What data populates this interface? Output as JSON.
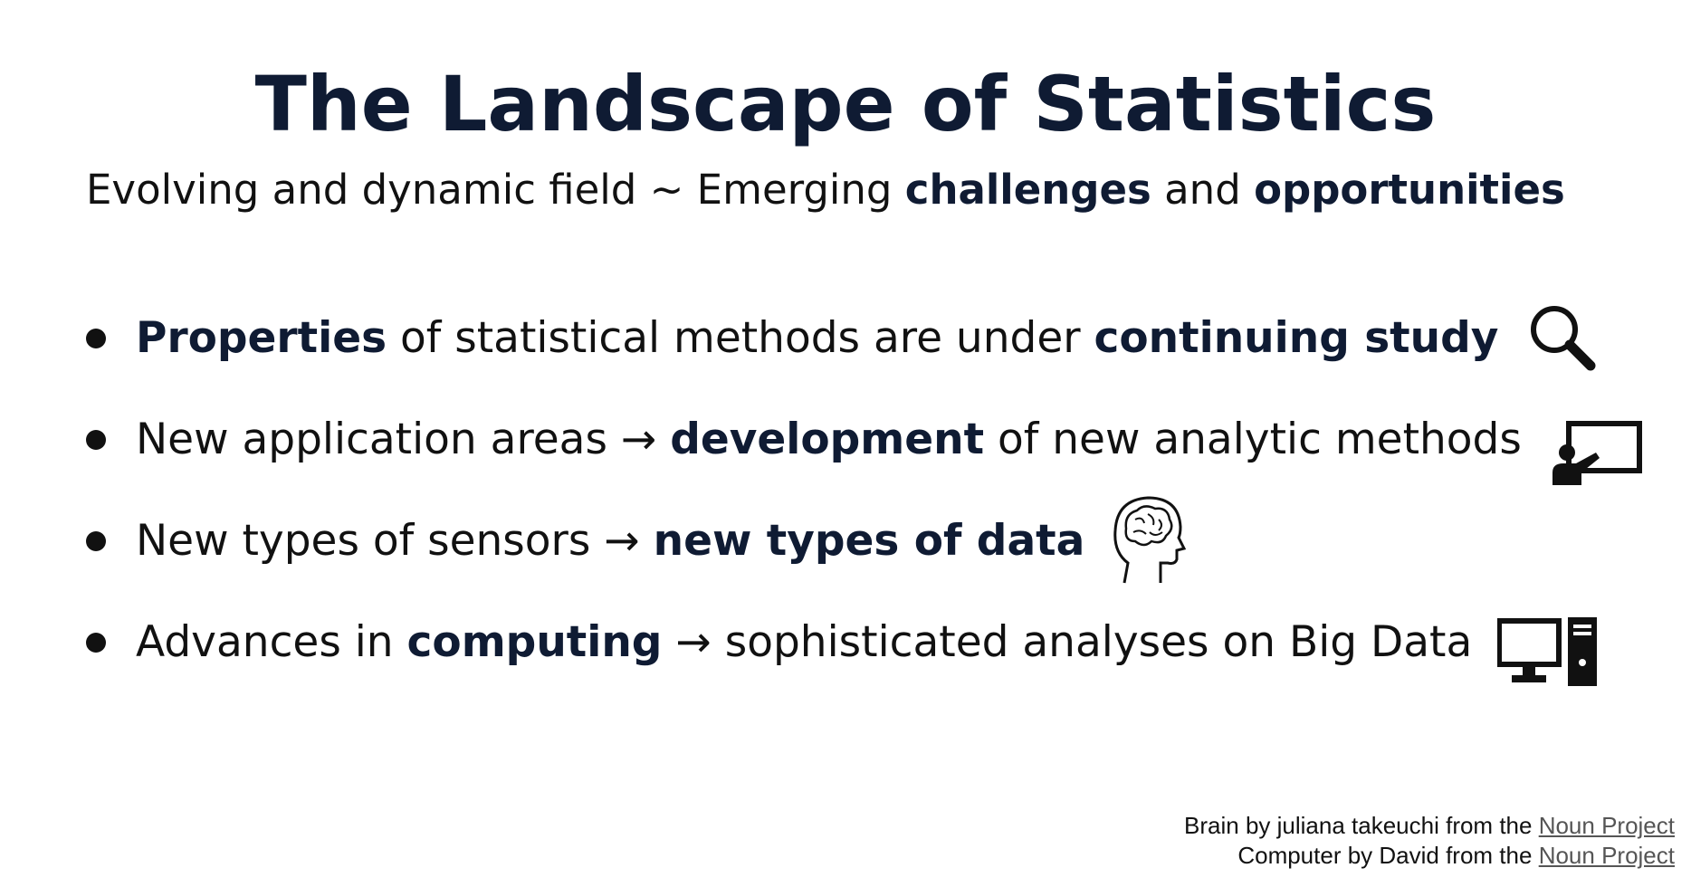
{
  "slide": {
    "title": "The Landscape of Statistics",
    "subtitle": {
      "part1": "Evolving and dynamic field ~ Emerging ",
      "bold1": "challenges",
      "part2": " and ",
      "bold2": "opportunities"
    },
    "bullets": [
      {
        "bold_a": "Properties",
        "text_a": " of statistical methods are under ",
        "bold_b": "continuing study",
        "icon": "magnifier-icon"
      },
      {
        "text_a": "New application areas → ",
        "bold_a": "development",
        "text_b": " of new analytic methods",
        "icon": "teacher-board-icon"
      },
      {
        "text_a": "New types of sensors → ",
        "bold_a": "new types of data",
        "icon": "brain-head-icon"
      },
      {
        "text_a": "Advances in ",
        "bold_a": "computing",
        "text_b": " → sophisticated analyses on Big Data",
        "icon": "desktop-computer-icon"
      }
    ],
    "credits": [
      {
        "text": "Brain by juliana takeuchi from the ",
        "link": "Noun Project"
      },
      {
        "text": "Computer by David from the ",
        "link": "Noun Project"
      }
    ]
  }
}
